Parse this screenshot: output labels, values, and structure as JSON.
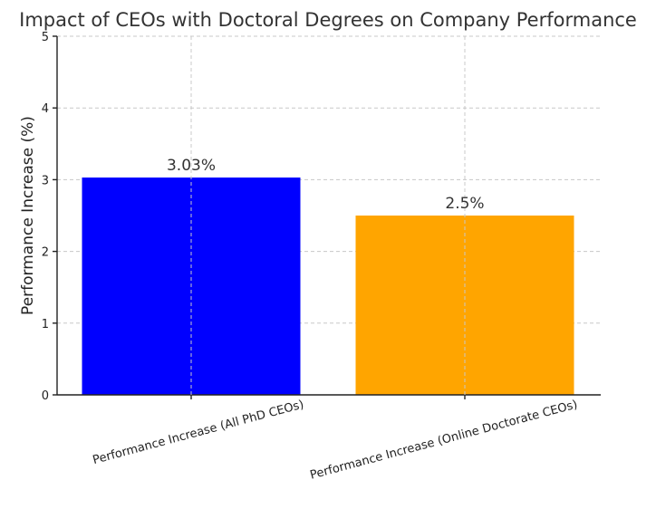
{
  "chart_data": {
    "type": "bar",
    "title": "Impact of CEOs with Doctoral Degrees on Company Performance",
    "xlabel": "",
    "ylabel": "Performance Increase (%)",
    "categories": [
      "Performance Increase (All PhD CEOs)",
      "Performance Increase (Online Doctorate CEOs)"
    ],
    "values": [
      3.03,
      2.5
    ],
    "data_labels": [
      "3.03%",
      "2.5%"
    ],
    "colors": [
      "#0000ff",
      "#ffa500"
    ],
    "ylim": [
      0,
      5
    ],
    "yticks": [
      0,
      1,
      2,
      3,
      4,
      5
    ],
    "grid": true
  }
}
